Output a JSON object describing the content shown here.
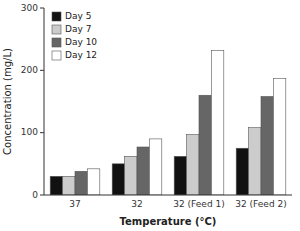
{
  "chart_data": {
    "type": "bar",
    "categories": [
      "37",
      "32",
      "32 (Feed 1)",
      "32 (Feed 2)"
    ],
    "series": [
      {
        "name": "Day 5",
        "color": "#111111",
        "values": [
          30,
          50,
          62,
          75
        ]
      },
      {
        "name": "Day 7",
        "color": "#cccccc",
        "values": [
          30,
          62,
          97,
          108
        ]
      },
      {
        "name": "Day 10",
        "color": "#666666",
        "values": [
          38,
          77,
          160,
          158
        ]
      },
      {
        "name": "Day 12",
        "color": "#ffffff",
        "values": [
          42,
          90,
          232,
          187
        ]
      }
    ],
    "xlabel": "Temperature (°C)",
    "ylabel": "Concentration (mg/L)",
    "ylim": [
      0,
      300
    ],
    "yticks": [
      0,
      100,
      200,
      300
    ],
    "grid": false,
    "legend": "upper left"
  }
}
